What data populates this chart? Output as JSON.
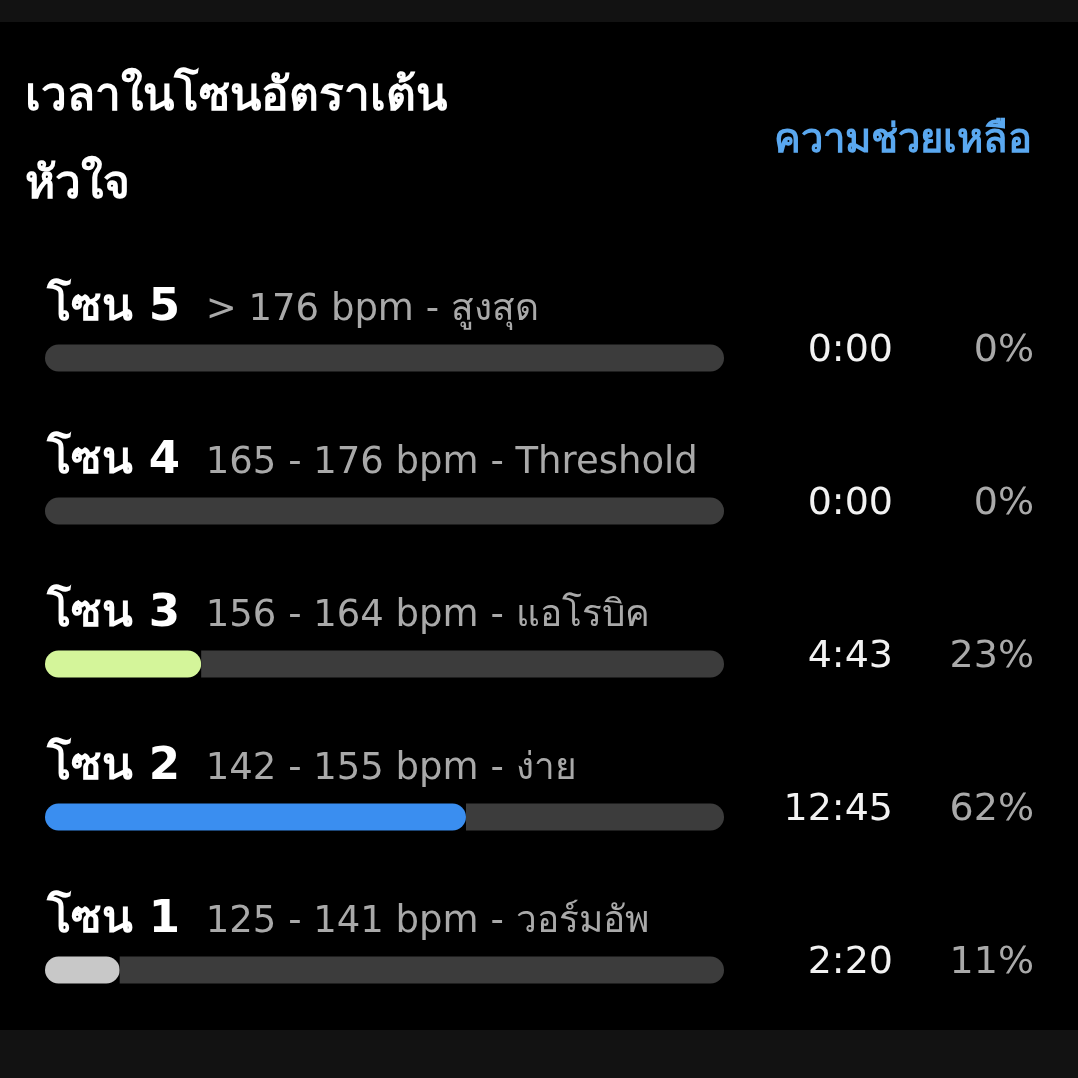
{
  "chart_data": {
    "type": "bar",
    "orientation": "horizontal",
    "stacked": true,
    "title": "เวลาในโซนอัตราเต้นหัวใจ",
    "categories": [
      "**โซน 5** > 176 bpm - สูงสุด",
      "**โซน 4** 165 - 176 bpm - Threshold",
      "**โซน 3** 156 - 164 bpm - แอโรบิค",
      "**โซน 2** 142 - 155 bpm - ง่าย",
      "**โซน 1** 125 - 141 bpm - วอร์มอัพ"
    ],
    "series": [
      {
        "colors": [
          null,
          null,
          "#d4f59a",
          "#3a8ef0",
          "#c8c8c8"
        ],
        "values": [
          0,
          0,
          23,
          62,
          11
        ],
        "value_labels": [
          "0%",
          "0%",
          "23%",
          "62%",
          "11%"
        ]
      },
      {
        "color": "#3c3c3c",
        "values": [
          100,
          100,
          77,
          38,
          89
        ]
      }
    ],
    "xlim": [
      0,
      100
    ],
    "tick_labels": "y",
    "annotations": [
      "ความช่วยเหลือ",
      "0:00",
      "0:00",
      "4:43",
      "12:45",
      "2:20"
    ]
  }
}
